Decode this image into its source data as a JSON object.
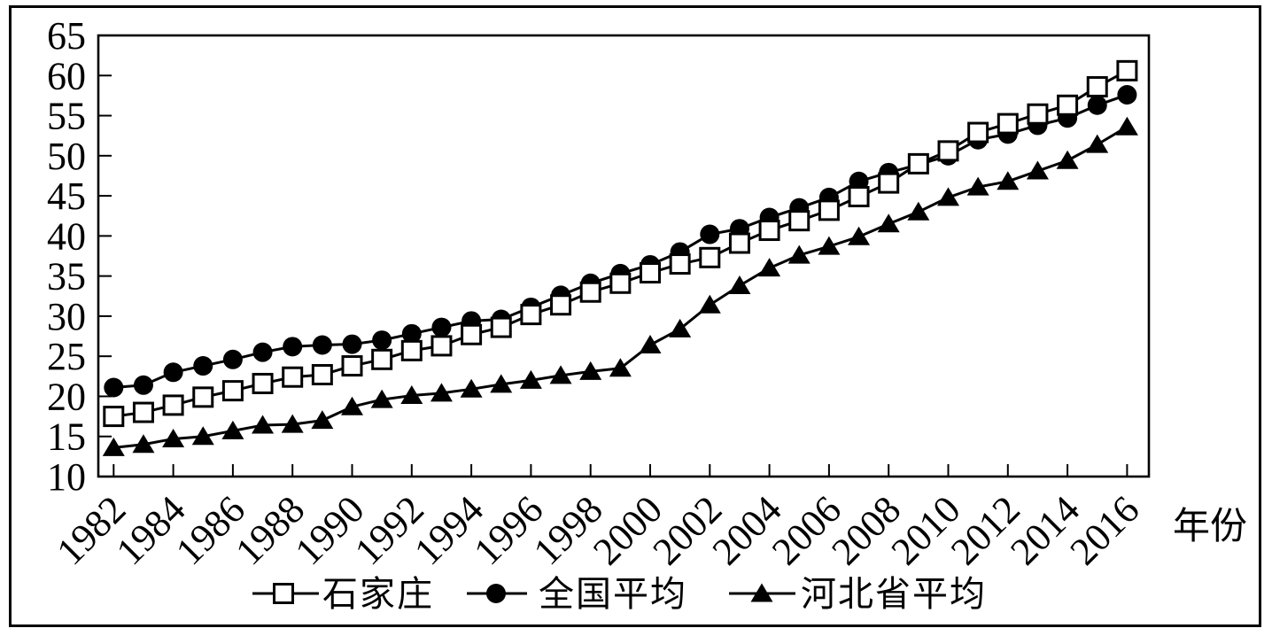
{
  "figure": {
    "background": "#ffffff",
    "line_color": "#000000",
    "x_axis_label": "年份",
    "y_axis": {
      "min": 10,
      "max": 65,
      "tick_labels": [
        65,
        60,
        55,
        50,
        45,
        40,
        35,
        30,
        25,
        20,
        15,
        10
      ]
    },
    "x_axis": {
      "tick_years": [
        1982,
        1984,
        1986,
        1988,
        1990,
        1992,
        1994,
        1996,
        1998,
        2000,
        2002,
        2004,
        2006,
        2008,
        2010,
        2012,
        2014,
        2016
      ]
    },
    "legend": [
      {
        "id": "shijiazhuang",
        "label": "石家庄",
        "marker": "square"
      },
      {
        "id": "national",
        "label": "全国平均",
        "marker": "circle"
      },
      {
        "id": "hebei",
        "label": "河北省平均",
        "marker": "triangle"
      }
    ]
  },
  "chart_data": {
    "type": "line",
    "title": "",
    "xlabel": "年份",
    "ylabel": "",
    "ylim": [
      10,
      65
    ],
    "x_tick_step": 2,
    "grid": false,
    "legend_position": "bottom",
    "x": [
      1982,
      1983,
      1984,
      1985,
      1986,
      1987,
      1988,
      1989,
      1990,
      1991,
      1992,
      1993,
      1994,
      1995,
      1996,
      1997,
      1998,
      1999,
      2000,
      2001,
      2002,
      2003,
      2004,
      2005,
      2006,
      2007,
      2008,
      2009,
      2010,
      2011,
      2012,
      2013,
      2014,
      2015,
      2016
    ],
    "series": [
      {
        "id": "shijiazhuang",
        "name": "石家庄",
        "marker": "square",
        "marker_fill": "#ffffff",
        "line_color": "#000000",
        "values": [
          17.5,
          18.0,
          18.9,
          19.9,
          20.7,
          21.6,
          22.4,
          22.7,
          23.8,
          24.6,
          25.7,
          26.3,
          27.7,
          28.6,
          30.2,
          31.4,
          33.0,
          34.1,
          35.4,
          36.5,
          37.3,
          39.1,
          40.7,
          41.9,
          43.2,
          44.9,
          46.6,
          49.0,
          50.6,
          52.9,
          54.0,
          55.2,
          56.3,
          58.6,
          60.6
        ]
      },
      {
        "id": "national",
        "name": "全国平均",
        "marker": "circle",
        "marker_fill": "#000000",
        "line_color": "#000000",
        "values": [
          21.1,
          21.4,
          23.0,
          23.8,
          24.6,
          25.5,
          26.2,
          26.4,
          26.5,
          27.0,
          27.8,
          28.6,
          29.4,
          29.6,
          31.1,
          32.6,
          34.1,
          35.3,
          36.4,
          38.0,
          40.2,
          40.9,
          42.3,
          43.5,
          44.8,
          46.8,
          47.9,
          48.9,
          50.0,
          52.0,
          52.7,
          53.8,
          54.7,
          56.3,
          57.6
        ]
      },
      {
        "id": "hebei",
        "name": "河北省平均",
        "marker": "triangle",
        "marker_fill": "#000000",
        "line_color": "#000000",
        "values": [
          13.6,
          14.0,
          14.7,
          15.0,
          15.7,
          16.4,
          16.5,
          17.0,
          18.7,
          19.6,
          20.1,
          20.4,
          20.9,
          21.5,
          22.0,
          22.6,
          23.1,
          23.5,
          26.4,
          28.4,
          31.4,
          33.8,
          36.0,
          37.6,
          38.7,
          39.9,
          41.5,
          43.0,
          44.8,
          46.1,
          46.8,
          48.1,
          49.4,
          51.4,
          53.6
        ]
      }
    ]
  }
}
